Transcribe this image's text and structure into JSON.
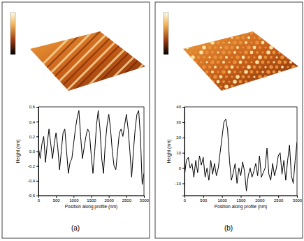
{
  "chart_data": [
    {
      "type": "line",
      "title": "(a)",
      "xlabel": "Position along profile (nm)",
      "ylabel": "Height (nm)",
      "color": "#000000",
      "grid": false,
      "x": [
        0,
        50,
        100,
        150,
        200,
        250,
        300,
        350,
        400,
        450,
        500,
        550,
        600,
        650,
        700,
        750,
        800,
        850,
        900,
        950,
        1000,
        1050,
        1100,
        1150,
        1200,
        1250,
        1300,
        1350,
        1400,
        1450,
        1500,
        1550,
        1600,
        1650,
        1700,
        1750,
        1800,
        1850,
        1900,
        1950,
        2000,
        2050,
        2100,
        2150,
        2200,
        2250,
        2300,
        2350,
        2400,
        2450,
        2500,
        2550,
        2600,
        2650,
        2700,
        2750,
        2800,
        2850,
        2900,
        2950,
        3000
      ],
      "values": [
        0.05,
        -0.1,
        0.1,
        0.2,
        -0.15,
        0.1,
        0.3,
        0.1,
        -0.1,
        0.1,
        0.25,
        0.05,
        -0.25,
        0.0,
        0.25,
        0.3,
        0.0,
        -0.3,
        -0.15,
        -0.1,
        0.1,
        0.3,
        0.45,
        0.55,
        0.2,
        -0.1,
        0.05,
        0.2,
        0.3,
        0.25,
        -0.05,
        -0.3,
        0.0,
        0.35,
        0.55,
        0.3,
        -0.1,
        -0.3,
        0.1,
        0.35,
        0.5,
        0.3,
        0.0,
        -0.2,
        -0.25,
        0.0,
        0.25,
        0.3,
        0.2,
        0.35,
        0.5,
        0.3,
        0.0,
        -0.35,
        0.0,
        0.3,
        0.5,
        0.55,
        0.2,
        -0.45,
        -0.3
      ],
      "xlim": [
        0,
        3000
      ],
      "xticks": [
        0,
        500,
        1000,
        1500,
        2000,
        2500,
        3000
      ],
      "ylim": [
        -0.6,
        0.6
      ],
      "yticks": [
        {
          "value": -0.6,
          "label": "-0,6"
        },
        {
          "value": -0.4,
          "label": "-0,4"
        },
        {
          "value": -0.2,
          "label": "-0,2"
        },
        {
          "value": 0,
          "label": "0,0"
        },
        {
          "value": 0.2,
          "label": "0,2"
        },
        {
          "value": 0.4,
          "label": "0,4"
        },
        {
          "value": 0.6,
          "label": "0,6"
        }
      ]
    },
    {
      "type": "line",
      "title": "(b)",
      "xlabel": "Position along profile (nm)",
      "ylabel": "Height (nm)",
      "color": "#000000",
      "grid": false,
      "x": [
        0,
        50,
        100,
        150,
        200,
        250,
        300,
        350,
        400,
        450,
        500,
        550,
        600,
        650,
        700,
        750,
        800,
        850,
        900,
        950,
        1000,
        1050,
        1100,
        1150,
        1200,
        1250,
        1300,
        1350,
        1400,
        1450,
        1500,
        1550,
        1600,
        1650,
        1700,
        1750,
        1800,
        1850,
        1900,
        1950,
        2000,
        2050,
        2100,
        2150,
        2200,
        2250,
        2300,
        2350,
        2400,
        2450,
        2500,
        2550,
        2600,
        2650,
        2700,
        2750,
        2800,
        2850,
        2900,
        2950,
        3000
      ],
      "values": [
        -5,
        5,
        7,
        0,
        3,
        -6,
        5,
        -3,
        8,
        2,
        7,
        -6,
        0,
        -8,
        5,
        -4,
        3,
        -5,
        0,
        10,
        20,
        30,
        32,
        25,
        5,
        -8,
        -3,
        3,
        -10,
        0,
        -5,
        4,
        -2,
        -15,
        -5,
        0,
        -6,
        -2,
        3,
        -5,
        8,
        -6,
        -3,
        0,
        13,
        -4,
        -8,
        3,
        -5,
        0,
        8,
        10,
        -4,
        5,
        -8,
        5,
        15,
        -5,
        -10,
        5,
        17
      ],
      "xlim": [
        0,
        3000
      ],
      "xticks": [
        0,
        500,
        1000,
        1500,
        2000,
        2500,
        3000
      ],
      "ylim": [
        -18,
        40
      ],
      "yticks": [
        -10,
        0,
        10,
        20,
        30,
        40
      ]
    }
  ]
}
